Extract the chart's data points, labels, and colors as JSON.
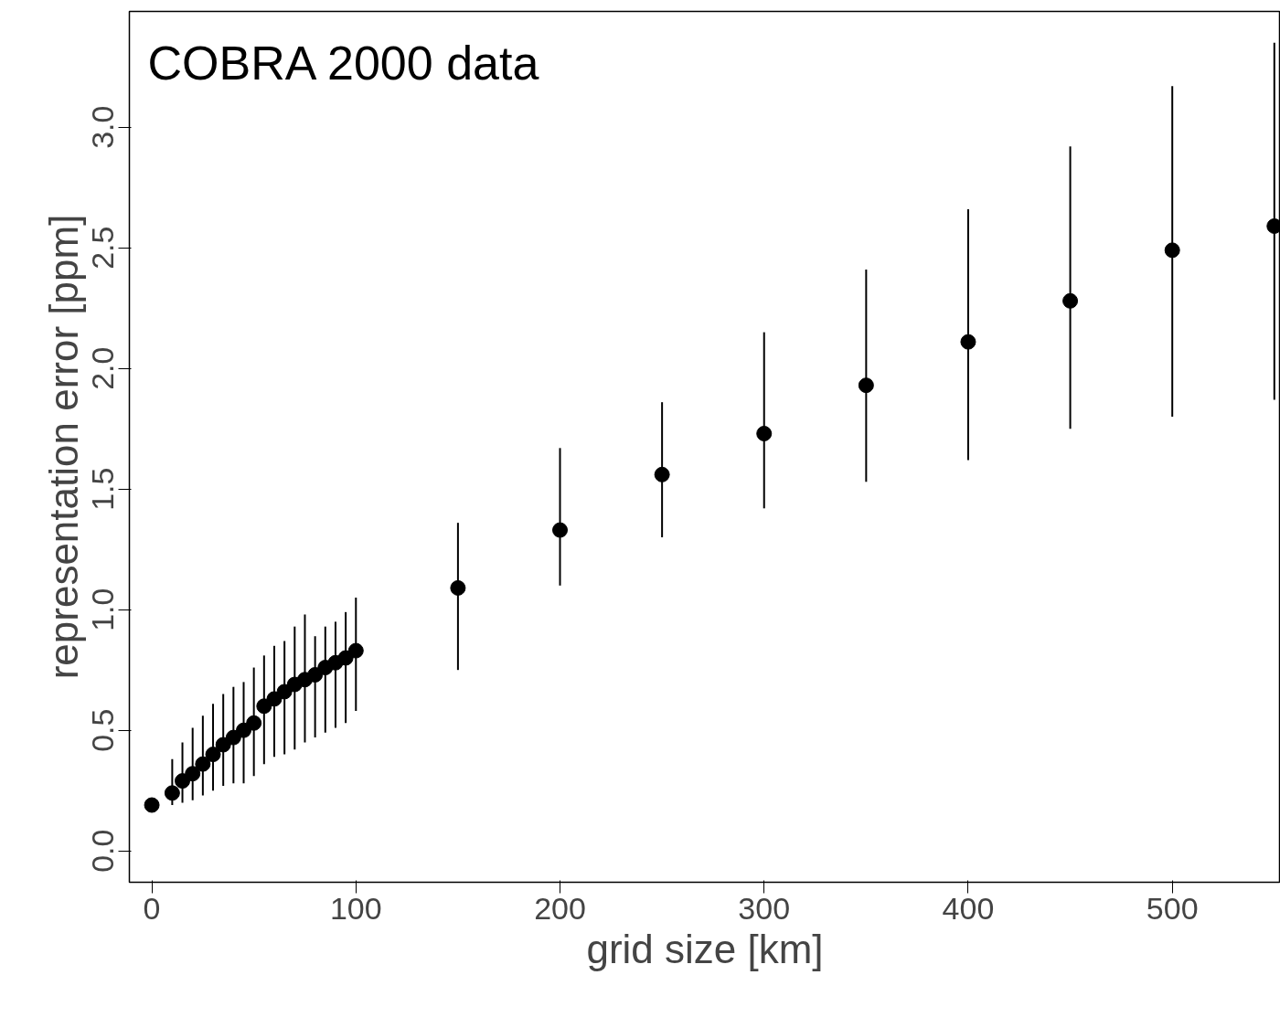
{
  "chart_data": {
    "type": "scatter",
    "title": "COBRA 2000 data",
    "xlabel": "grid size [km]",
    "ylabel": "representation error [ppm]",
    "x": [
      0,
      10,
      15,
      20,
      25,
      30,
      35,
      40,
      45,
      50,
      55,
      60,
      65,
      70,
      75,
      80,
      85,
      90,
      95,
      100,
      150,
      200,
      250,
      300,
      350,
      400,
      450,
      500,
      550
    ],
    "values": [
      0.19,
      0.24,
      0.29,
      0.32,
      0.36,
      0.4,
      0.44,
      0.47,
      0.5,
      0.53,
      0.6,
      0.63,
      0.66,
      0.69,
      0.71,
      0.73,
      0.76,
      0.78,
      0.8,
      0.83,
      1.09,
      1.33,
      1.56,
      1.73,
      1.93,
      2.11,
      2.28,
      2.49,
      2.59
    ],
    "errors": [
      null,
      [
        0.19,
        0.38
      ],
      [
        0.2,
        0.45
      ],
      [
        0.21,
        0.51
      ],
      [
        0.23,
        0.56
      ],
      [
        0.25,
        0.61
      ],
      [
        0.27,
        0.65
      ],
      [
        0.28,
        0.68
      ],
      [
        0.28,
        0.7
      ],
      [
        0.31,
        0.76
      ],
      [
        0.36,
        0.81
      ],
      [
        0.39,
        0.85
      ],
      [
        0.4,
        0.87
      ],
      [
        0.42,
        0.93
      ],
      [
        0.45,
        0.98
      ],
      [
        0.47,
        0.89
      ],
      [
        0.49,
        0.93
      ],
      [
        0.51,
        0.95
      ],
      [
        0.53,
        0.99
      ],
      [
        0.58,
        1.05
      ],
      [
        0.75,
        1.36
      ],
      [
        1.1,
        1.67
      ],
      [
        1.3,
        1.86
      ],
      [
        1.42,
        2.15
      ],
      [
        1.53,
        2.41
      ],
      [
        1.62,
        2.66
      ],
      [
        1.75,
        2.92
      ],
      [
        1.8,
        3.17
      ],
      [
        1.87,
        3.35
      ]
    ],
    "color": "#000000",
    "marker": "circle",
    "grid": false,
    "xlim": [
      -11,
      553
    ],
    "ylim": [
      -0.13,
      3.48
    ],
    "xticks": [
      0,
      100,
      200,
      300,
      400,
      500
    ],
    "yticks": [
      {
        "value": 0,
        "label": "0.0"
      },
      {
        "value": 0.5,
        "label": "0.5"
      },
      {
        "value": 1,
        "label": "1.0"
      },
      {
        "value": 1.5,
        "label": "1.5"
      },
      {
        "value": 2,
        "label": "2.0"
      },
      {
        "value": 2.5,
        "label": "2.5"
      },
      {
        "value": 3,
        "label": "3.0"
      }
    ]
  }
}
